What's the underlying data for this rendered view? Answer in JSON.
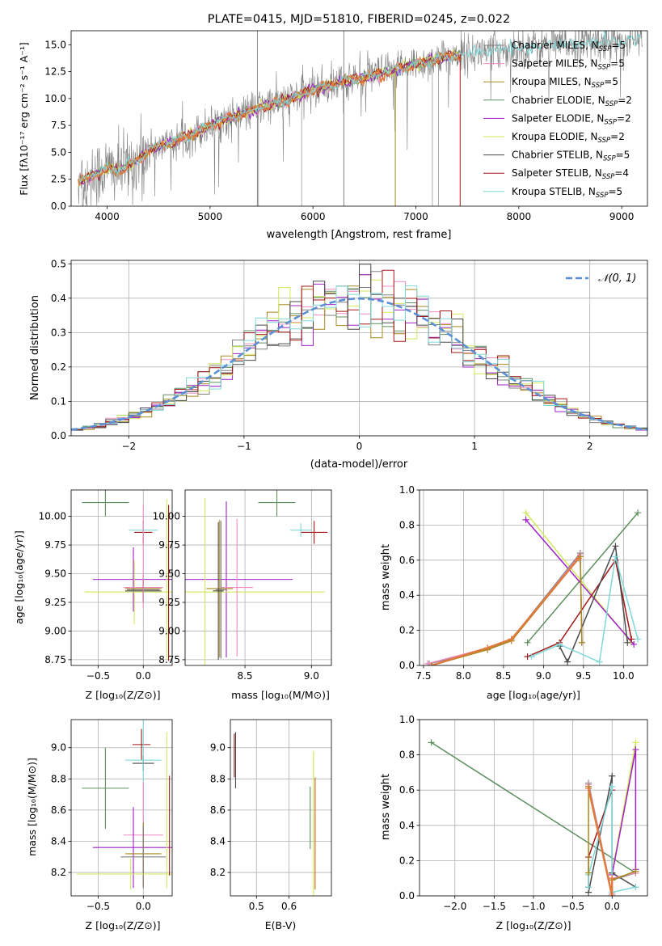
{
  "colors": {
    "Chabrier MILES": "#808080",
    "Salpeter MILES": "#f08cc4",
    "Kroupa MILES": "#a8891c",
    "Chabrier ELODIE": "#5e8f5e",
    "Salpeter ELODIE": "#a020c8",
    "Kroupa ELODIE": "#d2e85a",
    "Chabrier STELIB": "#4a4a4a",
    "Salpeter STELIB": "#a01818",
    "Kroupa STELIB": "#7fd8d8",
    "highlight": "#e07a3c",
    "normal": "#5b8fd6"
  },
  "chart_data": [
    {
      "id": "spectrum",
      "type": "line",
      "title": "PLATE=0415, MJD=51810, FIBERID=0245, z=0.022",
      "xlabel": "wavelength [Angstrom, rest frame]",
      "ylabel": "Flux [fλ10⁻¹⁷ erg cm⁻² s⁻¹ A⁻¹]",
      "xlim": [
        3650,
        9250
      ],
      "ylim": [
        0,
        16.3
      ],
      "xticks": [
        4000,
        5000,
        6000,
        7000,
        8000,
        9000
      ],
      "yticks": [
        0.0,
        2.5,
        5.0,
        7.5,
        10.0,
        12.5,
        15.0
      ],
      "legend_position": "top-right",
      "legend": [
        {
          "model": "Chabrier MILES",
          "label": "Chabrier MILES, N",
          "n": "=5"
        },
        {
          "model": "Salpeter MILES",
          "label": "Salpeter MILES, N",
          "n": "=5"
        },
        {
          "model": "Kroupa MILES",
          "label": "Kroupa MILES, N",
          "n": "=5"
        },
        {
          "model": "Chabrier ELODIE",
          "label": "Chabrier ELODIE, N",
          "n": "=2"
        },
        {
          "model": "Salpeter ELODIE",
          "label": "Salpeter ELODIE, N",
          "n": "=2"
        },
        {
          "model": "Kroupa ELODIE",
          "label": "Kroupa ELODIE, N",
          "n": "=2"
        },
        {
          "model": "Chabrier STELIB",
          "label": "Chabrier STELIB, N",
          "n": "=5"
        },
        {
          "model": "Salpeter STELIB",
          "label": "Salpeter STELIB, N",
          "n": "=4"
        },
        {
          "model": "Kroupa STELIB",
          "label": "Kroupa STELIB, N",
          "n": "=5"
        }
      ],
      "legend_subscript": "SSP",
      "continuum": {
        "x": [
          3720,
          3800,
          3900,
          4000,
          4100,
          4200,
          4300,
          4400,
          4500,
          4700,
          4900,
          5000,
          5200,
          5500,
          5800,
          6000,
          6300,
          6500,
          6700,
          6900,
          7100,
          7300,
          7500,
          7800,
          8000,
          8200,
          8500,
          8800,
          9000,
          9200
        ],
        "y": [
          2.3,
          2.6,
          3.0,
          3.5,
          3.3,
          3.7,
          4.3,
          5.2,
          5.5,
          6.2,
          7.0,
          7.5,
          8.2,
          9.2,
          10.0,
          10.8,
          11.6,
          12.0,
          12.4,
          12.9,
          13.4,
          13.9,
          14.2,
          14.5,
          14.7,
          14.9,
          15.1,
          15.3,
          15.4,
          15.5
        ]
      },
      "model_range": [
        3720,
        7440
      ],
      "dips": [
        {
          "x": 6800,
          "model": "Kroupa MILES"
        },
        {
          "x": 7430,
          "model": "Salpeter STELIB"
        }
      ]
    },
    {
      "id": "residuals",
      "type": "line",
      "xlabel": "(data-model)/error",
      "ylabel": "Normed distribution",
      "xlim": [
        -2.5,
        2.5
      ],
      "ylim": [
        0,
        0.51
      ],
      "xticks": [
        -2,
        -1,
        0,
        1,
        2
      ],
      "yticks": [
        0.0,
        0.1,
        0.2,
        0.3,
        0.4,
        0.5
      ],
      "grid": true,
      "legend_position": "top-right",
      "normal_label": "𝒩(0, 1)",
      "bin_width": 0.1
    },
    {
      "id": "age_vs_Z",
      "type": "scatter",
      "xlabel": "Z [log₁₀(Z/Z⊙)]",
      "ylabel": "age  [log₁₀(age/yr)]",
      "xlim": [
        -0.8,
        0.32
      ],
      "ylim": [
        8.7,
        10.23
      ],
      "xticks": [
        -0.5,
        0.0
      ],
      "yticks": [
        8.75,
        9.0,
        9.25,
        9.5,
        9.75,
        10.0
      ],
      "grid": true,
      "points": [
        {
          "model": "Chabrier ELODIE",
          "x": -0.42,
          "y": 10.12,
          "xerr": 0.26,
          "yerr": 0.12
        },
        {
          "model": "Salpeter STELIB",
          "x": 0.0,
          "y": 9.86,
          "xerr": 0.1,
          "yerr": 0.1
        },
        {
          "model": "Kroupa STELIB",
          "x": 0.0,
          "y": 9.88,
          "xerr": 0.16,
          "yerr": 0.06
        },
        {
          "model": "Salpeter ELODIE",
          "x": -0.11,
          "y": 9.45,
          "xerr": 0.45,
          "yerr": 0.28
        },
        {
          "model": "Kroupa ELODIE",
          "x": -0.1,
          "y": 9.34,
          "xerr": 0.55,
          "yerr": 0.28
        },
        {
          "model": "Kroupa MILES",
          "x": 0.0,
          "y": 9.37,
          "xerr": 0.2,
          "yerr": 0.12
        },
        {
          "model": "Salpeter MILES",
          "x": 0.0,
          "y": 9.38,
          "xerr": 0.22,
          "yerr": 0.12
        },
        {
          "model": "Chabrier MILES",
          "x": 0.0,
          "y": 9.36,
          "xerr": 0.18,
          "yerr": 0.1
        },
        {
          "model": "Chabrier STELIB",
          "x": 0.0,
          "y": 9.35,
          "xerr": 0.2,
          "yerr": 0.1
        },
        {
          "model": "Kroupa ELODIE",
          "x": 0.26,
          "y": 9.45,
          "xerr": 0.0,
          "yerr": 0.7
        },
        {
          "model": "Salpeter STELIB",
          "x": 0.28,
          "y": 9.42,
          "xerr": 0.0,
          "yerr": 0.68
        },
        {
          "model": "Salpeter MILES",
          "x": 0.0,
          "y": 9.65,
          "xerr": 0.0,
          "yerr": 0.45
        }
      ]
    },
    {
      "id": "age_vs_mass",
      "type": "scatter",
      "xlabel": "mass [log₁₀(M/M⊙)]",
      "xlim": [
        8.05,
        9.15
      ],
      "ylim": [
        8.7,
        10.23
      ],
      "xticks": [
        8.5,
        9.0
      ],
      "yticks": [
        8.75,
        9.0,
        9.25,
        9.5,
        9.75,
        10.0
      ],
      "grid": true,
      "points": [
        {
          "model": "Chabrier ELODIE",
          "x": 8.74,
          "y": 10.12,
          "xerr": 0.14,
          "yerr": 0.12
        },
        {
          "model": "Salpeter STELIB",
          "x": 9.02,
          "y": 9.86,
          "xerr": 0.1,
          "yerr": 0.1
        },
        {
          "model": "Kroupa STELIB",
          "x": 8.92,
          "y": 9.88,
          "xerr": 0.08,
          "yerr": 0.06
        },
        {
          "model": "Salpeter ELODIE",
          "x": 8.36,
          "y": 9.45,
          "xerr": 0.5,
          "yerr": 0.68
        },
        {
          "model": "Kroupa ELODIE",
          "x": 8.2,
          "y": 9.34,
          "xerr": 0.9,
          "yerr": 0.82
        },
        {
          "model": "Kroupa MILES",
          "x": 8.31,
          "y": 9.37,
          "xerr": 0.1,
          "yerr": 0.6
        },
        {
          "model": "Salpeter MILES",
          "x": 8.44,
          "y": 9.38,
          "xerr": 0.12,
          "yerr": 0.6
        },
        {
          "model": "Chabrier MILES",
          "x": 8.32,
          "y": 9.36,
          "xerr": 0.04,
          "yerr": 0.6
        },
        {
          "model": "Chabrier STELIB",
          "x": 8.3,
          "y": 9.35,
          "xerr": 0.04,
          "yerr": 0.6
        }
      ]
    },
    {
      "id": "weight_vs_age",
      "type": "line",
      "xlabel": "age  [log₁₀(age/yr)]",
      "ylabel": "mass weight",
      "xlim": [
        7.45,
        10.3
      ],
      "ylim": [
        0,
        1.0
      ],
      "xticks": [
        7.5,
        8.0,
        8.5,
        9.0,
        9.5,
        10.0
      ],
      "yticks": [
        0.0,
        0.2,
        0.4,
        0.6,
        0.8,
        1.0
      ],
      "grid": true,
      "series": [
        {
          "model": "Chabrier ELODIE",
          "x": [
            8.8,
            10.18
          ],
          "y": [
            0.13,
            0.87
          ]
        },
        {
          "model": "Kroupa ELODIE",
          "x": [
            8.78,
            10.1
          ],
          "y": [
            0.87,
            0.13
          ]
        },
        {
          "model": "Salpeter ELODIE",
          "x": [
            8.78,
            10.13
          ],
          "y": [
            0.83,
            0.12
          ]
        },
        {
          "model": "Salpeter STELIB",
          "x": [
            8.8,
            9.2,
            9.9,
            10.1
          ],
          "y": [
            0.05,
            0.13,
            0.6,
            0.15
          ]
        },
        {
          "model": "Chabrier STELIB",
          "x": [
            9.2,
            9.3,
            9.9,
            10.05
          ],
          "y": [
            0.11,
            0.02,
            0.68,
            0.13
          ]
        },
        {
          "model": "Kroupa STELIB",
          "x": [
            8.85,
            9.2,
            9.7,
            9.9,
            10.18
          ],
          "y": [
            0.05,
            0.12,
            0.02,
            0.62,
            0.15
          ]
        },
        {
          "model": "Chabrier MILES",
          "x": [
            7.57,
            8.3,
            8.6,
            9.46,
            9.48
          ],
          "y": [
            0.01,
            0.09,
            0.15,
            0.64,
            0.13
          ]
        },
        {
          "model": "Salpeter MILES",
          "x": [
            7.55,
            8.3,
            8.6,
            9.46,
            9.48
          ],
          "y": [
            0.01,
            0.1,
            0.15,
            0.63,
            0.13
          ]
        },
        {
          "model": "Kroupa MILES",
          "x": [
            7.6,
            8.3,
            8.6,
            9.46,
            9.48
          ],
          "y": [
            0.0,
            0.09,
            0.14,
            0.62,
            0.13
          ]
        },
        {
          "model": "highlight",
          "x": [
            7.6,
            8.3,
            8.6,
            9.44
          ],
          "y": [
            0.0,
            0.1,
            0.15,
            0.61
          ]
        }
      ]
    },
    {
      "id": "mass_vs_Z",
      "type": "scatter",
      "xlabel": "Z [log₁₀(Z/Z⊙)]",
      "ylabel": "mass [log₁₀(M/M⊙)]",
      "xlim": [
        -0.8,
        0.32
      ],
      "ylim": [
        8.05,
        9.18
      ],
      "xticks": [
        -0.5,
        0.0
      ],
      "yticks": [
        8.2,
        8.4,
        8.6,
        8.8,
        9.0
      ],
      "grid": true,
      "points": [
        {
          "model": "Chabrier ELODIE",
          "x": -0.42,
          "y": 8.74,
          "xerr": 0.26,
          "yerr": 0.26
        },
        {
          "model": "Salpeter STELIB",
          "x": -0.02,
          "y": 9.02,
          "xerr": 0.1,
          "yerr": 0.1
        },
        {
          "model": "Chabrier STELIB",
          "x": 0.0,
          "y": 8.9,
          "xerr": 0.12,
          "yerr": 0.05
        },
        {
          "model": "Kroupa STELIB",
          "x": 0.0,
          "y": 8.92,
          "xerr": 0.2,
          "yerr": 0.82
        },
        {
          "model": "Salpeter MILES",
          "x": 0.0,
          "y": 8.44,
          "xerr": 0.22,
          "yerr": 0.34
        },
        {
          "model": "Salpeter ELODIE",
          "x": -0.11,
          "y": 8.36,
          "xerr": 0.45,
          "yerr": 0.26
        },
        {
          "model": "Kroupa MILES",
          "x": 0.0,
          "y": 8.32,
          "xerr": 0.2,
          "yerr": 0.2
        },
        {
          "model": "Chabrier MILES",
          "x": 0.0,
          "y": 8.3,
          "xerr": 0.25,
          "yerr": 0.2
        },
        {
          "model": "Kroupa ELODIE",
          "x": -0.14,
          "y": 8.19,
          "xerr": 0.6,
          "yerr": 0.1
        },
        {
          "model": "Kroupa ELODIE",
          "x": 0.26,
          "y": 8.6,
          "xerr": 0.0,
          "yerr": 0.5
        },
        {
          "model": "Salpeter STELIB",
          "x": 0.29,
          "y": 8.5,
          "xerr": 0.0,
          "yerr": 0.32
        }
      ]
    },
    {
      "id": "mass_vs_ebv",
      "type": "scatter",
      "xlabel": "E(B-V)",
      "xlim": [
        0.42,
        0.73
      ],
      "ylim": [
        8.05,
        9.18
      ],
      "xticks": [
        0.5,
        0.6
      ],
      "yticks": [
        8.2,
        8.4,
        8.6,
        8.8,
        9.0
      ],
      "grid": true,
      "points": [
        {
          "model": "Salpeter STELIB",
          "x": 0.432,
          "y": 8.95,
          "xerr": 0,
          "yerr": 0.14
        },
        {
          "model": "Chabrier STELIB",
          "x": 0.436,
          "y": 8.92,
          "xerr": 0,
          "yerr": 0.18
        },
        {
          "model": "Chabrier ELODIE",
          "x": 0.665,
          "y": 8.55,
          "xerr": 0,
          "yerr": 0.2
        },
        {
          "model": "Kroupa ELODIE",
          "x": 0.675,
          "y": 8.5,
          "xerr": 0,
          "yerr": 0.48
        },
        {
          "model": "Kroupa MILES",
          "x": 0.68,
          "y": 8.45,
          "xerr": 0,
          "yerr": 0.36
        },
        {
          "model": "highlight",
          "x": 0.68,
          "y": 8.45,
          "xerr": 0,
          "yerr": 0.35
        }
      ]
    },
    {
      "id": "weight_vs_Z",
      "type": "line",
      "xlabel": "Z [log₁₀(Z/Z⊙)]",
      "ylabel": "mass weight",
      "xlim": [
        -2.45,
        0.45
      ],
      "ylim": [
        0,
        1.0
      ],
      "xticks": [
        -2.0,
        -1.5,
        -1.0,
        -0.5,
        0.0
      ],
      "yticks": [
        0.0,
        0.2,
        0.4,
        0.6,
        0.8,
        1.0
      ],
      "grid": true,
      "series": [
        {
          "model": "Chabrier ELODIE",
          "x": [
            -2.3,
            0.3
          ],
          "y": [
            0.87,
            0.13
          ]
        },
        {
          "model": "Kroupa ELODIE",
          "x": [
            0.0,
            0.3
          ],
          "y": [
            0.13,
            0.87
          ]
        },
        {
          "model": "Salpeter ELODIE",
          "x": [
            0.0,
            0.3,
            0.3
          ],
          "y": [
            0.12,
            0.83,
            0.15
          ]
        },
        {
          "model": "Salpeter STELIB",
          "x": [
            -0.3,
            -0.3,
            0.0,
            0.0
          ],
          "y": [
            0.05,
            0.22,
            0.6,
            0.13
          ]
        },
        {
          "model": "Chabrier STELIB",
          "x": [
            -0.3,
            0.0,
            0.0,
            0.3
          ],
          "y": [
            0.02,
            0.68,
            0.13,
            0.05
          ]
        },
        {
          "model": "Kroupa STELIB",
          "x": [
            -0.3,
            -0.3,
            0.0,
            0.0,
            0.3
          ],
          "y": [
            0.05,
            0.12,
            0.62,
            0.02,
            0.05
          ]
        },
        {
          "model": "Chabrier MILES",
          "x": [
            -0.3,
            0.0,
            0.0,
            0.3
          ],
          "y": [
            0.64,
            0.01,
            0.09,
            0.13
          ]
        },
        {
          "model": "Salpeter MILES",
          "x": [
            -0.3,
            0.0,
            0.0,
            0.3
          ],
          "y": [
            0.63,
            0.01,
            0.1,
            0.13
          ]
        },
        {
          "model": "Kroupa MILES",
          "x": [
            -0.3,
            -0.3,
            0.0,
            0.0,
            0.3
          ],
          "y": [
            0.13,
            0.62,
            0.0,
            0.09,
            0.14
          ]
        },
        {
          "model": "highlight",
          "x": [
            -0.3,
            0.0,
            0.0
          ],
          "y": [
            0.61,
            0.0,
            0.1
          ]
        }
      ]
    }
  ]
}
